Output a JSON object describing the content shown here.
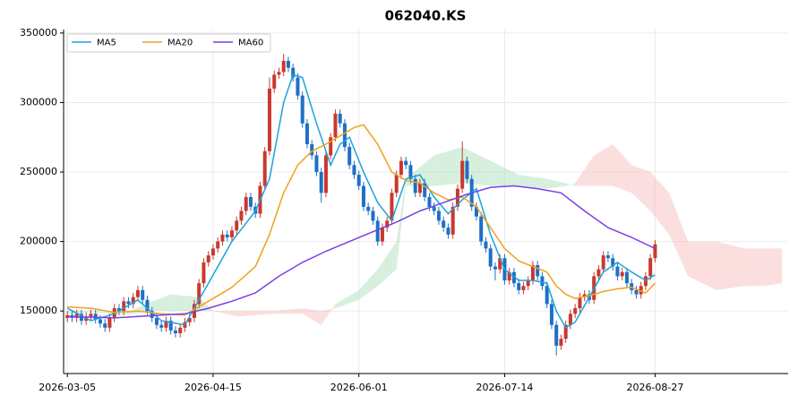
{
  "chart_data": {
    "type": "candlestick",
    "title": "062040.KS",
    "xlim": [
      -0.8,
      153.3
    ],
    "xticks": [
      {
        "value": 0,
        "label": "2026-03-05"
      },
      {
        "value": 31,
        "label": "2026-04-15"
      },
      {
        "value": 62,
        "label": "2026-06-01"
      },
      {
        "value": 93,
        "label": "2026-07-14"
      },
      {
        "value": 125,
        "label": "2026-08-27"
      }
    ],
    "ylim": [
      105000,
      352500
    ],
    "yticks": [
      150000,
      200000,
      250000,
      300000,
      350000
    ],
    "grid": true,
    "legend": "upper left",
    "up_color": "#c8392f",
    "down_color": "#1f6fc6",
    "open": [
      145000,
      147000,
      145000,
      148000,
      143000,
      146000,
      148000,
      144000,
      141000,
      138000,
      145000,
      152000,
      150000,
      157000,
      155000,
      160000,
      165000,
      158000,
      150000,
      145000,
      140000,
      138000,
      143000,
      136000,
      134000,
      138000,
      142000,
      145000,
      155000,
      170000,
      185000,
      190000,
      195000,
      200000,
      205000,
      203000,
      208000,
      215000,
      222000,
      232000,
      225000,
      220000,
      240000,
      265000,
      310000,
      320000,
      322000,
      330000,
      325000,
      318000,
      305000,
      285000,
      270000,
      262000,
      250000,
      235000,
      262000,
      275000,
      292000,
      285000,
      268000,
      255000,
      248000,
      240000,
      225000,
      222000,
      215000,
      200000,
      210000,
      215000,
      235000,
      248000,
      258000,
      255000,
      245000,
      235000,
      242000,
      232000,
      225000,
      222000,
      215000,
      210000,
      205000,
      225000,
      238000,
      258000,
      245000,
      225000,
      218000,
      200000,
      195000,
      182000,
      180000,
      188000,
      172000,
      178000,
      170000,
      165000,
      168000,
      172000,
      183000,
      175000,
      168000,
      155000,
      140000,
      125000,
      130000,
      140000,
      148000,
      152000,
      160000,
      162000,
      158000,
      175000,
      180000,
      190000,
      188000,
      182000,
      175000,
      178000,
      170000,
      165000,
      162000,
      168000,
      175000,
      188000
    ],
    "high": [
      150000,
      150000,
      151000,
      151000,
      149000,
      151000,
      151000,
      147000,
      144000,
      148000,
      155000,
      155000,
      160000,
      160000,
      163000,
      168000,
      168000,
      161000,
      153000,
      148000,
      143000,
      146000,
      146000,
      139000,
      141000,
      145000,
      148000,
      158000,
      173000,
      188000,
      193000,
      198000,
      203000,
      208000,
      208000,
      211000,
      218000,
      225000,
      235000,
      235000,
      228000,
      243000,
      268000,
      318000,
      323000,
      325000,
      335000,
      333000,
      328000,
      321000,
      308000,
      288000,
      273000,
      265000,
      253000,
      265000,
      278000,
      295000,
      295000,
      288000,
      271000,
      258000,
      251000,
      243000,
      228000,
      225000,
      218000,
      213000,
      218000,
      238000,
      251000,
      261000,
      261000,
      258000,
      248000,
      245000,
      245000,
      235000,
      228000,
      225000,
      218000,
      213000,
      228000,
      241000,
      272000,
      261000,
      248000,
      228000,
      221000,
      203000,
      198000,
      185000,
      191000,
      191000,
      181000,
      181000,
      173000,
      171000,
      175000,
      186000,
      186000,
      178000,
      171000,
      158000,
      143000,
      133000,
      143000,
      151000,
      155000,
      163000,
      165000,
      165000,
      178000,
      183000,
      193000,
      193000,
      191000,
      185000,
      181000,
      181000,
      173000,
      168000,
      171000,
      178000,
      191000,
      201000
    ],
    "low": [
      142000,
      142000,
      142000,
      140000,
      140000,
      143000,
      141000,
      138000,
      135000,
      135000,
      142000,
      147000,
      147000,
      152000,
      152000,
      157000,
      155000,
      147000,
      142000,
      137000,
      135000,
      135000,
      133000,
      131000,
      131000,
      135000,
      139000,
      142000,
      152000,
      167000,
      182000,
      187000,
      192000,
      197000,
      200000,
      200000,
      205000,
      212000,
      219000,
      222000,
      217000,
      217000,
      237000,
      262000,
      307000,
      317000,
      319000,
      322000,
      315000,
      302000,
      282000,
      267000,
      259000,
      247000,
      228000,
      232000,
      259000,
      272000,
      282000,
      265000,
      252000,
      245000,
      237000,
      222000,
      219000,
      212000,
      197000,
      197000,
      207000,
      212000,
      232000,
      245000,
      252000,
      242000,
      232000,
      232000,
      229000,
      222000,
      219000,
      212000,
      207000,
      202000,
      202000,
      222000,
      235000,
      242000,
      222000,
      215000,
      197000,
      192000,
      179000,
      172000,
      177000,
      169000,
      169000,
      167000,
      162000,
      162000,
      165000,
      169000,
      172000,
      165000,
      152000,
      137000,
      118000,
      122000,
      127000,
      137000,
      145000,
      149000,
      157000,
      155000,
      155000,
      172000,
      177000,
      185000,
      179000,
      172000,
      172000,
      167000,
      162000,
      159000,
      159000,
      165000,
      172000,
      185000
    ],
    "close": [
      147000,
      145000,
      148000,
      143000,
      146000,
      148000,
      144000,
      141000,
      138000,
      145000,
      152000,
      150000,
      157000,
      155000,
      160000,
      165000,
      158000,
      150000,
      145000,
      140000,
      138000,
      143000,
      136000,
      134000,
      138000,
      142000,
      145000,
      155000,
      170000,
      185000,
      190000,
      195000,
      200000,
      205000,
      203000,
      208000,
      215000,
      222000,
      232000,
      225000,
      220000,
      240000,
      265000,
      310000,
      320000,
      322000,
      330000,
      325000,
      318000,
      305000,
      285000,
      270000,
      262000,
      250000,
      235000,
      262000,
      275000,
      292000,
      285000,
      268000,
      255000,
      248000,
      240000,
      225000,
      222000,
      215000,
      200000,
      210000,
      215000,
      235000,
      248000,
      258000,
      255000,
      245000,
      235000,
      242000,
      232000,
      225000,
      222000,
      215000,
      210000,
      205000,
      225000,
      238000,
      258000,
      245000,
      225000,
      218000,
      200000,
      195000,
      182000,
      180000,
      188000,
      172000,
      178000,
      170000,
      165000,
      168000,
      172000,
      183000,
      175000,
      168000,
      155000,
      140000,
      125000,
      130000,
      140000,
      148000,
      152000,
      160000,
      162000,
      158000,
      175000,
      180000,
      190000,
      188000,
      182000,
      175000,
      178000,
      170000,
      165000,
      162000,
      168000,
      175000,
      188000,
      198000
    ],
    "lines": [
      {
        "name": "MA5",
        "color": "#1ba3dc",
        "x": [
          0,
          5,
          10,
          15,
          20,
          25,
          30,
          35,
          40,
          43,
          46,
          48,
          50,
          53,
          56,
          58,
          60,
          63,
          66,
          69,
          72,
          75,
          78,
          81,
          84,
          87,
          90,
          93,
          96,
          99,
          102,
          104,
          106,
          108,
          111,
          114,
          117,
          120,
          123,
          125
        ],
        "values": [
          152000,
          143000,
          148000,
          158000,
          143000,
          140000,
          170000,
          200000,
          222000,
          245000,
          300000,
          320000,
          318000,
          285000,
          255000,
          270000,
          275000,
          250000,
          228000,
          215000,
          245000,
          248000,
          232000,
          220000,
          230000,
          238000,
          205000,
          180000,
          172000,
          172000,
          170000,
          150000,
          138000,
          142000,
          160000,
          178000,
          185000,
          178000,
          172000,
          176000
        ]
      },
      {
        "name": "MA20",
        "color": "#f2a01e",
        "x": [
          0,
          5,
          10,
          15,
          20,
          25,
          30,
          35,
          40,
          43,
          46,
          49,
          52,
          55,
          58,
          61,
          63,
          66,
          69,
          72,
          75,
          78,
          81,
          84,
          87,
          90,
          93,
          96,
          99,
          102,
          104,
          106,
          108,
          111,
          114,
          117,
          120,
          123,
          125
        ],
        "values": [
          153000,
          152000,
          149000,
          150000,
          148000,
          147000,
          157000,
          167000,
          182000,
          205000,
          235000,
          255000,
          265000,
          270000,
          276000,
          282000,
          284000,
          270000,
          250000,
          244000,
          242000,
          235000,
          230000,
          232000,
          225000,
          210000,
          195000,
          186000,
          182000,
          178000,
          168000,
          162000,
          159000,
          161000,
          164000,
          166000,
          167000,
          163000,
          170000
        ]
      },
      {
        "name": "MA60",
        "color": "#7b3fe4",
        "x": [
          0,
          10,
          20,
          25,
          30,
          35,
          40,
          45,
          50,
          55,
          60,
          65,
          70,
          75,
          80,
          85,
          90,
          95,
          100,
          105,
          110,
          115,
          120,
          125
        ],
        "values": [
          146000,
          145000,
          147000,
          148000,
          152000,
          157000,
          163000,
          175000,
          185000,
          193000,
          200000,
          207000,
          214000,
          222000,
          228000,
          234000,
          239000,
          240000,
          238000,
          235000,
          222000,
          210000,
          203000,
          195000
        ]
      }
    ],
    "cloud": {
      "up_color": "#a8dcb6",
      "down_color": "#f8b9b9",
      "x": [
        0,
        6,
        12,
        18,
        22,
        28,
        31,
        36,
        44,
        50,
        54,
        57,
        62,
        66,
        70,
        72,
        78,
        84,
        90,
        96,
        102,
        106,
        108,
        112,
        116,
        120,
        124,
        128,
        132,
        138,
        144,
        148,
        152
      ],
      "span_a": [
        150000,
        150000,
        148000,
        157000,
        162000,
        160000,
        150000,
        146000,
        148000,
        148000,
        140000,
        155000,
        165000,
        180000,
        200000,
        245000,
        262000,
        268000,
        258000,
        248000,
        245000,
        242000,
        240000,
        240000,
        240000,
        235000,
        222000,
        205000,
        175000,
        165000,
        168000,
        168000,
        170000
      ],
      "span_b": [
        148000,
        149000,
        147000,
        150000,
        150000,
        150000,
        150000,
        150000,
        150000,
        152000,
        150000,
        152000,
        158000,
        168000,
        180000,
        240000,
        240000,
        242000,
        240000,
        240000,
        238000,
        240000,
        242000,
        262000,
        270000,
        255000,
        250000,
        235000,
        200000,
        200000,
        195000,
        195000,
        195000
      ]
    }
  }
}
